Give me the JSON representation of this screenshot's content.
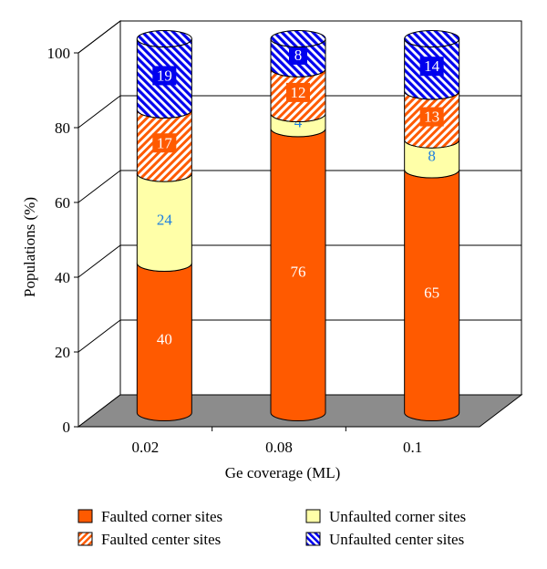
{
  "chart_data": {
    "type": "bar",
    "stacked": true,
    "style": "3d-cylinder",
    "categories": [
      "0.02",
      "0.08",
      "0.1"
    ],
    "series": [
      {
        "name": "Faulted corner sites",
        "values": [
          40,
          76,
          65
        ],
        "color": "#ff5a00",
        "pattern": "solid",
        "label_color": "#ffffff"
      },
      {
        "name": "Unfaulted corner sites",
        "values": [
          24,
          4,
          8
        ],
        "color": "#ffffa8",
        "pattern": "solid",
        "label_color": "#1e7fe0"
      },
      {
        "name": "Faulted center sites",
        "values": [
          17,
          12,
          13
        ],
        "color": "#ff5a00",
        "pattern": "hatch-orange",
        "label_color": "#ffffff"
      },
      {
        "name": "Unfaulted center sites",
        "values": [
          19,
          8,
          14
        ],
        "color": "#0000ee",
        "pattern": "hatch-blue",
        "label_color": "#ffffff"
      }
    ],
    "xlabel": "Ge coverage (ML)",
    "ylabel": "Populations (%)",
    "ylim": [
      0,
      100
    ],
    "yticks": [
      "0",
      "20",
      "40",
      "60",
      "80",
      "100"
    ],
    "grid": true,
    "legend_position": "bottom",
    "legend_order": [
      0,
      1,
      2,
      3
    ]
  }
}
